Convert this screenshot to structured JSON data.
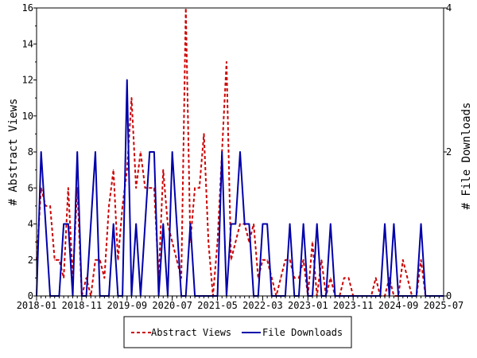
{
  "chart_data": {
    "type": "line",
    "x_tick_labels": [
      "2018-01",
      "2018-11",
      "2019-09",
      "2020-07",
      "2021-05",
      "2022-03",
      "2023-01",
      "2023-11",
      "2024-09",
      "2025-07"
    ],
    "x_range": [
      "2018-01",
      "2025-07"
    ],
    "left_axis": {
      "label": "# Abstract Views",
      "range": [
        0,
        16
      ],
      "ticks": [
        "0",
        "2",
        "4",
        "6",
        "8",
        "10",
        "12",
        "14",
        "16"
      ]
    },
    "right_axis": {
      "label": "# File Downloads",
      "range": [
        0,
        4
      ],
      "ticks": [
        "0",
        "2",
        "4"
      ]
    },
    "grid": false,
    "legend_position": "bottom-center",
    "series": [
      {
        "name": "Abstract Views",
        "axis": "left",
        "color": "#cc0000",
        "style": "dashed",
        "x": [
          "2018-01",
          "2018-02",
          "2018-03",
          "2018-04",
          "2018-05",
          "2018-06",
          "2018-07",
          "2018-08",
          "2018-09",
          "2018-10",
          "2018-11",
          "2018-12",
          "2019-01",
          "2019-02",
          "2019-03",
          "2019-04",
          "2019-05",
          "2019-06",
          "2019-07",
          "2019-08",
          "2019-09",
          "2019-10",
          "2019-11",
          "2019-12",
          "2020-01",
          "2020-02",
          "2020-03",
          "2020-04",
          "2020-05",
          "2020-06",
          "2020-07",
          "2020-08",
          "2020-09",
          "2020-10",
          "2020-11",
          "2020-12",
          "2021-01",
          "2021-02",
          "2021-03",
          "2021-04",
          "2021-05",
          "2021-06",
          "2021-07",
          "2021-08",
          "2021-09",
          "2021-10",
          "2021-11",
          "2021-12",
          "2022-01",
          "2022-02",
          "2022-03",
          "2022-04",
          "2022-05",
          "2022-06",
          "2022-07",
          "2022-08",
          "2022-09",
          "2022-10",
          "2022-11",
          "2022-12",
          "2023-01",
          "2023-02",
          "2023-03",
          "2023-04",
          "2023-05",
          "2023-06",
          "2023-07",
          "2023-08",
          "2023-09",
          "2023-10",
          "2023-11",
          "2023-12",
          "2024-01",
          "2024-02",
          "2024-03",
          "2024-04",
          "2024-05",
          "2024-06",
          "2024-07",
          "2024-08",
          "2024-09",
          "2024-10",
          "2024-11",
          "2024-12",
          "2025-01",
          "2025-02",
          "2025-03",
          "2025-04",
          "2025-05",
          "2025-06",
          "2025-07"
        ],
        "values": [
          2,
          6,
          5,
          5,
          2,
          2,
          1,
          6,
          1,
          6,
          0,
          1,
          0,
          2,
          2,
          1,
          5,
          7,
          2,
          5,
          7,
          11,
          6,
          8,
          6,
          6,
          6,
          1,
          7,
          4,
          3,
          2,
          1,
          16,
          3,
          6,
          6,
          9,
          3,
          0,
          3,
          8,
          13,
          2,
          3,
          4,
          4,
          3,
          4,
          1,
          2,
          2,
          1,
          0,
          1,
          2,
          2,
          1,
          1,
          2,
          0,
          3,
          0,
          2,
          0,
          1,
          0,
          0,
          1,
          1,
          0,
          0,
          0,
          0,
          0,
          1,
          0,
          0,
          1,
          0,
          0,
          2,
          1,
          0,
          0,
          2,
          0,
          0,
          0,
          0,
          0
        ]
      },
      {
        "name": "File Downloads",
        "axis": "right",
        "color": "#0000aa",
        "style": "solid",
        "x": [
          "2018-01",
          "2018-02",
          "2018-03",
          "2018-04",
          "2018-05",
          "2018-06",
          "2018-07",
          "2018-08",
          "2018-09",
          "2018-10",
          "2018-11",
          "2018-12",
          "2019-01",
          "2019-02",
          "2019-03",
          "2019-04",
          "2019-05",
          "2019-06",
          "2019-07",
          "2019-08",
          "2019-09",
          "2019-10",
          "2019-11",
          "2019-12",
          "2020-01",
          "2020-02",
          "2020-03",
          "2020-04",
          "2020-05",
          "2020-06",
          "2020-07",
          "2020-08",
          "2020-09",
          "2020-10",
          "2020-11",
          "2020-12",
          "2021-01",
          "2021-02",
          "2021-03",
          "2021-04",
          "2021-05",
          "2021-06",
          "2021-07",
          "2021-08",
          "2021-09",
          "2021-10",
          "2021-11",
          "2021-12",
          "2022-01",
          "2022-02",
          "2022-03",
          "2022-04",
          "2022-05",
          "2022-06",
          "2022-07",
          "2022-08",
          "2022-09",
          "2022-10",
          "2022-11",
          "2022-12",
          "2023-01",
          "2023-02",
          "2023-03",
          "2023-04",
          "2023-05",
          "2023-06",
          "2023-07",
          "2023-08",
          "2023-09",
          "2023-10",
          "2023-11",
          "2023-12",
          "2024-01",
          "2024-02",
          "2024-03",
          "2024-04",
          "2024-05",
          "2024-06",
          "2024-07",
          "2024-08",
          "2024-09",
          "2024-10",
          "2024-11",
          "2024-12",
          "2025-01",
          "2025-02",
          "2025-03",
          "2025-04",
          "2025-05",
          "2025-06",
          "2025-07"
        ],
        "values": [
          0,
          2,
          1,
          0,
          0,
          0,
          1,
          1,
          0,
          2,
          0,
          0,
          1,
          2,
          0,
          0,
          0,
          1,
          0,
          0,
          3,
          0,
          1,
          0,
          1,
          2,
          2,
          0,
          1,
          0,
          2,
          1,
          0,
          0,
          1,
          0,
          0,
          0,
          0,
          0,
          0,
          2,
          0,
          1,
          1,
          2,
          1,
          1,
          0,
          0,
          1,
          1,
          0,
          0,
          0,
          0,
          1,
          0,
          0,
          1,
          0,
          0,
          1,
          0,
          0,
          1,
          0,
          0,
          0,
          0,
          0,
          0,
          0,
          0,
          0,
          0,
          0,
          1,
          0,
          1,
          0,
          0,
          0,
          0,
          0,
          1,
          0,
          0,
          0,
          0,
          0
        ]
      }
    ]
  }
}
